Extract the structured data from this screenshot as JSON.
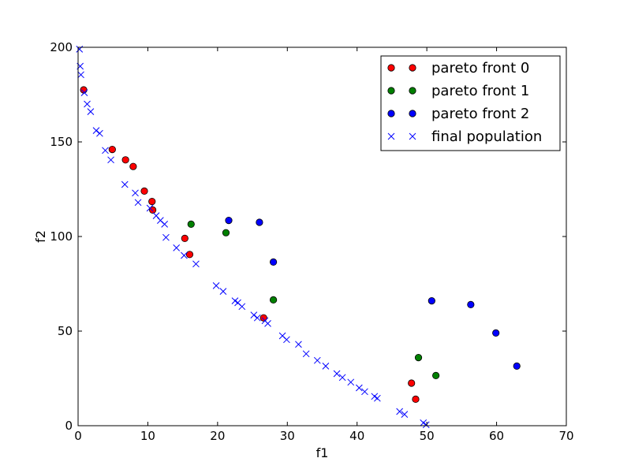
{
  "chart_data": {
    "type": "scatter",
    "title": "",
    "xlabel": "f1",
    "ylabel": "f2",
    "xlim": [
      0,
      70
    ],
    "ylim": [
      0,
      200
    ],
    "xticks": [
      0,
      10,
      20,
      30,
      40,
      50,
      60,
      70
    ],
    "yticks": [
      0,
      50,
      100,
      150,
      200
    ],
    "grid": false,
    "legend_position": "top-right",
    "series": [
      {
        "name": "pareto front 0",
        "marker": "circle",
        "color": "#ff0000",
        "points": [
          [
            0.8,
            177.5
          ],
          [
            4.9,
            146
          ],
          [
            6.8,
            140.5
          ],
          [
            7.9,
            137
          ],
          [
            9.5,
            124
          ],
          [
            10.6,
            118.5
          ],
          [
            10.7,
            114
          ],
          [
            15.3,
            99
          ],
          [
            16.0,
            90.5
          ],
          [
            26.6,
            57
          ],
          [
            47.8,
            22.5
          ],
          [
            48.4,
            14
          ]
        ]
      },
      {
        "name": "pareto front 1",
        "marker": "circle",
        "color": "#008000",
        "points": [
          [
            16.2,
            106.5
          ],
          [
            21.2,
            102
          ],
          [
            28.0,
            66.5
          ],
          [
            48.8,
            36
          ],
          [
            51.3,
            26.5
          ]
        ]
      },
      {
        "name": "pareto front 2",
        "marker": "circle",
        "color": "#0000ff",
        "points": [
          [
            21.6,
            108.5
          ],
          [
            26.0,
            107.5
          ],
          [
            28.0,
            86.5
          ],
          [
            50.7,
            66
          ],
          [
            56.3,
            64
          ],
          [
            59.9,
            49
          ],
          [
            62.9,
            31.5
          ]
        ]
      },
      {
        "name": "final population",
        "marker": "x",
        "color": "#0000ff",
        "points": [
          [
            0.2,
            199
          ],
          [
            0.3,
            190
          ],
          [
            0.4,
            185.5
          ],
          [
            0.9,
            176
          ],
          [
            1.3,
            170
          ],
          [
            1.8,
            166
          ],
          [
            2.6,
            156
          ],
          [
            3.1,
            154.5
          ],
          [
            3.9,
            145.5
          ],
          [
            4.7,
            140.5
          ],
          [
            6.7,
            127.5
          ],
          [
            8.2,
            123
          ],
          [
            8.6,
            118
          ],
          [
            10.3,
            115
          ],
          [
            11.2,
            111
          ],
          [
            11.8,
            108.5
          ],
          [
            12.4,
            106.5
          ],
          [
            12.6,
            99.5
          ],
          [
            14.1,
            94
          ],
          [
            15.2,
            90
          ],
          [
            16.9,
            85.5
          ],
          [
            19.8,
            74
          ],
          [
            20.8,
            71
          ],
          [
            22.5,
            66
          ],
          [
            22.9,
            65
          ],
          [
            23.5,
            63
          ],
          [
            25.2,
            58.5
          ],
          [
            25.7,
            57
          ],
          [
            26.8,
            55.5
          ],
          [
            27.2,
            54
          ],
          [
            29.3,
            47.5
          ],
          [
            29.9,
            45.5
          ],
          [
            31.6,
            43
          ],
          [
            32.7,
            38
          ],
          [
            34.3,
            34.5
          ],
          [
            35.5,
            31.5
          ],
          [
            37.1,
            27.5
          ],
          [
            37.9,
            25.5
          ],
          [
            39.1,
            23
          ],
          [
            40.3,
            20
          ],
          [
            41.1,
            18
          ],
          [
            42.5,
            15.5
          ],
          [
            42.9,
            14.5
          ],
          [
            46.1,
            7.5
          ],
          [
            46.8,
            6
          ],
          [
            49.5,
            1.5
          ],
          [
            49.9,
            0.5
          ]
        ]
      }
    ]
  }
}
